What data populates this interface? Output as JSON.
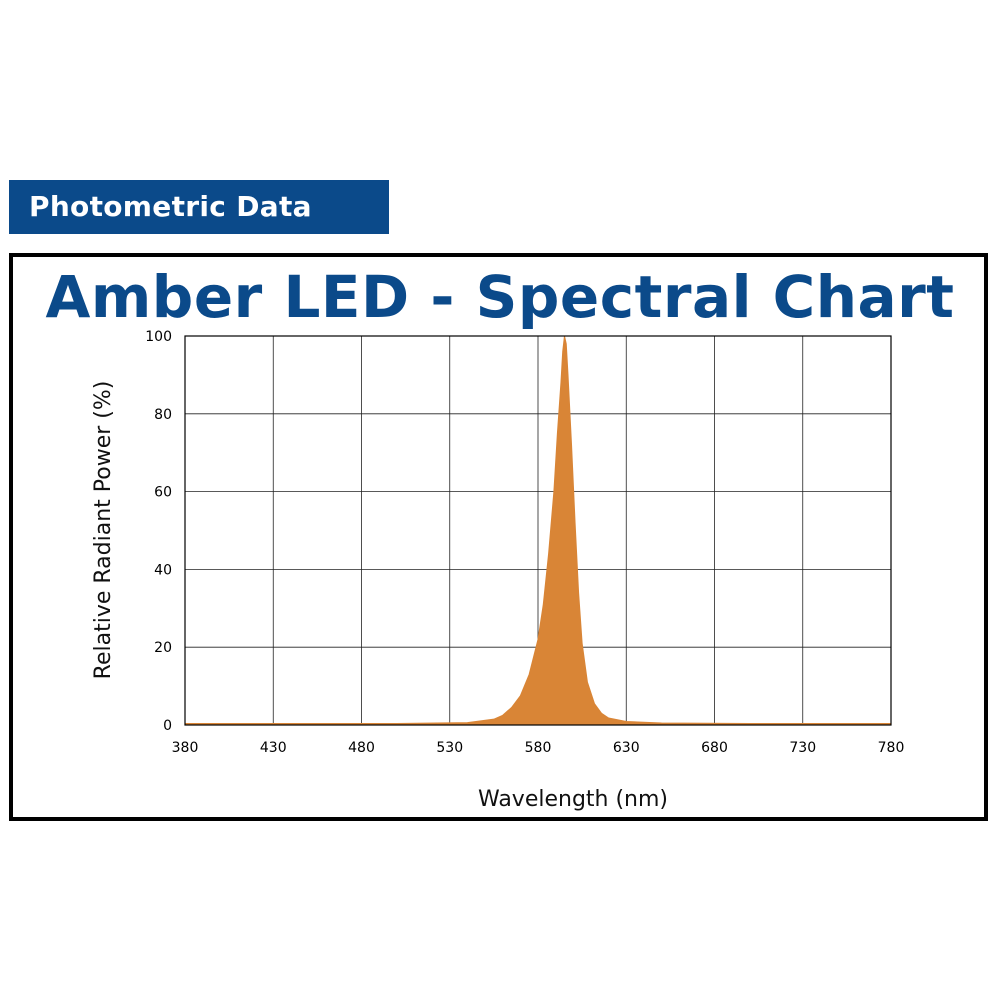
{
  "banner": {
    "label": "Photometric Data"
  },
  "colors": {
    "banner": "#0b4a8a",
    "title": "#0b4a8a",
    "fill": "#d98536",
    "grid": "#000000"
  },
  "chart_data": {
    "type": "area",
    "title": "Amber LED - Spectral Chart",
    "xlabel": "Wavelength (nm)",
    "ylabel": "Relative Radiant Power (%)",
    "xlim": [
      380,
      780
    ],
    "ylim": [
      0,
      100
    ],
    "xticks": [
      380,
      430,
      480,
      530,
      580,
      630,
      680,
      730,
      780
    ],
    "yticks": [
      0,
      20,
      40,
      60,
      80,
      100
    ],
    "grid": true,
    "series": [
      {
        "name": "Amber LED",
        "x": [
          380,
          500,
          540,
          555,
          560,
          565,
          570,
          575,
          580,
          583,
          586,
          589,
          591,
          593,
          594,
          595,
          596,
          597,
          599,
          601,
          603,
          605,
          608,
          612,
          616,
          620,
          630,
          650,
          700,
          780
        ],
        "y": [
          0.4,
          0.4,
          0.6,
          1.5,
          2.5,
          4.5,
          7.5,
          13,
          22,
          31,
          44,
          60,
          75,
          88,
          96,
          100,
          98,
          90,
          72,
          52,
          34,
          21,
          11,
          5.5,
          3,
          1.8,
          0.9,
          0.5,
          0.4,
          0.4
        ]
      }
    ]
  }
}
